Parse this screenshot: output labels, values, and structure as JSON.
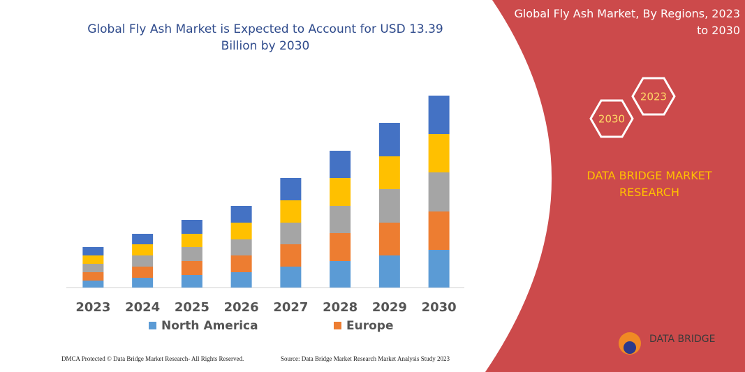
{
  "chart_data": {
    "type": "stacked-bar",
    "title": "Global Fly Ash Market is Expected to Account for USD 13.39 Billion by 2030",
    "categories": [
      "2023",
      "2024",
      "2025",
      "2026",
      "2027",
      "2028",
      "2029",
      "2030"
    ],
    "series": [
      {
        "name": "North America",
        "color": "#5b9bd5",
        "values": [
          10,
          14,
          18,
          22,
          30,
          38,
          46,
          54
        ]
      },
      {
        "name": "Europe",
        "color": "#ed7d31",
        "values": [
          12,
          16,
          20,
          24,
          32,
          40,
          47,
          55
        ]
      },
      {
        "name": null,
        "color": "#a5a5a5",
        "values": [
          12,
          16,
          20,
          23,
          31,
          39,
          48,
          56
        ]
      },
      {
        "name": null,
        "color": "#ffc000",
        "values": [
          12,
          16,
          19,
          24,
          32,
          40,
          47,
          55
        ]
      },
      {
        "name": null,
        "color": "#4472c4",
        "values": [
          12,
          15,
          20,
          24,
          32,
          39,
          48,
          55
        ]
      }
    ]
  },
  "panel": {
    "title": "Global Fly Ash Market, By Regions, 2023 to 2030",
    "hex_labels": [
      "2030",
      "2023"
    ],
    "brand": "DATA BRIDGE MARKET RESEARCH"
  },
  "logo": {
    "text": "DATA BRIDGE"
  },
  "footer": {
    "left": "DMCA Protected © Data Bridge Market Research- All Rights Reserved.",
    "right": "Source: Data Bridge Market Research Market Analysis Study 2023"
  }
}
